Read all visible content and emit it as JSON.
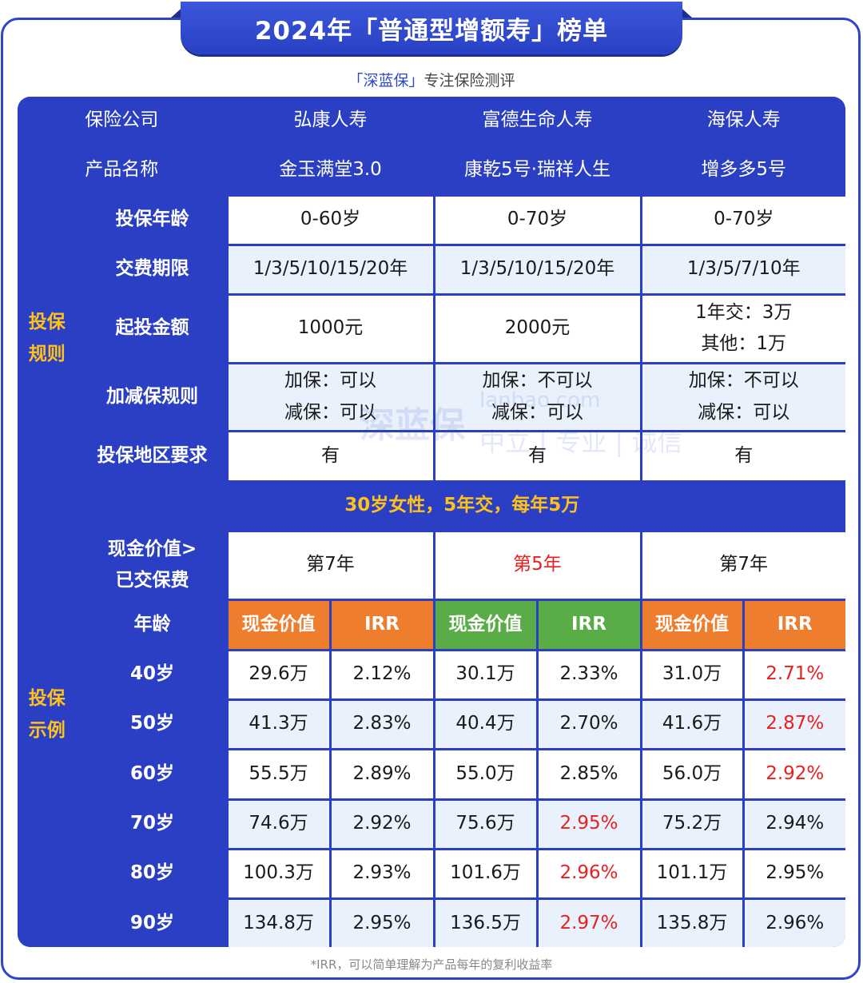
{
  "title": "2024年「普通型增额寿」榜单",
  "subtitle": {
    "brand": "「深蓝保」",
    "rest": "专注保险测评"
  },
  "watermark": {
    "main": "深蓝保",
    "url": "lanbao.com",
    "tag": "中立 | 专业 | 诚信"
  },
  "header": {
    "company_label": "保险公司",
    "product_label": "产品名称"
  },
  "products": [
    {
      "company": "弘康人寿",
      "name": "金玉满堂3.0",
      "age": "0-60岁",
      "pay_period": "1/3/5/10/15/20年",
      "min_amount_1": "1000元",
      "min_amount_2": "",
      "adjust_1": "加保：可以",
      "adjust_2": "减保：可以",
      "region": "有",
      "year_label": "第7年"
    },
    {
      "company": "富德生命人寿",
      "name": "康乾5号·瑞祥人生",
      "age": "0-70岁",
      "pay_period": "1/3/5/10/15/20年",
      "min_amount_1": "2000元",
      "min_amount_2": "",
      "adjust_1": "加保：不可以",
      "adjust_2": "减保：可以",
      "region": "有",
      "year_label": "第5年"
    },
    {
      "company": "海保人寿",
      "name": "增多多5号",
      "age": "0-70岁",
      "pay_period": "1/3/5/7/10年",
      "min_amount_1": "1年交：3万",
      "min_amount_2": "其他：1万",
      "adjust_1": "加保：不可以",
      "adjust_2": "减保：可以",
      "region": "有",
      "year_label": "第7年"
    }
  ],
  "rules": {
    "section_label_1": "投保",
    "section_label_2": "规则",
    "age_label": "投保年龄",
    "pay_label": "交费期限",
    "min_label": "起投金额",
    "adjust_label": "加减保规则",
    "region_label": "投保地区要求"
  },
  "example": {
    "section_label_1": "投保",
    "section_label_2": "示例",
    "scenario": "30岁女性，5年交，每年5万",
    "cv_label_1": "现金价值>",
    "cv_label_2": "已交保费",
    "age_col_label": "年龄",
    "cash_value_label": "现金价值",
    "irr_label": "IRR",
    "rows": [
      {
        "age": "40岁",
        "v": [
          "29.6万",
          "2.12%",
          "30.1万",
          "2.33%",
          "31.0万",
          "2.71%"
        ]
      },
      {
        "age": "50岁",
        "v": [
          "41.3万",
          "2.83%",
          "40.4万",
          "2.70%",
          "41.6万",
          "2.87%"
        ]
      },
      {
        "age": "60岁",
        "v": [
          "55.5万",
          "2.89%",
          "55.0万",
          "2.85%",
          "56.0万",
          "2.92%"
        ]
      },
      {
        "age": "70岁",
        "v": [
          "74.6万",
          "2.92%",
          "75.6万",
          "2.95%",
          "75.2万",
          "2.94%"
        ]
      },
      {
        "age": "80岁",
        "v": [
          "100.3万",
          "2.93%",
          "101.6万",
          "2.96%",
          "101.1万",
          "2.95%"
        ]
      },
      {
        "age": "90岁",
        "v": [
          "134.8万",
          "2.95%",
          "136.5万",
          "2.97%",
          "135.8万",
          "2.96%"
        ]
      }
    ]
  },
  "highlights": {
    "year_red_col": 1,
    "red_cells": [
      [
        0,
        5
      ],
      [
        1,
        5
      ],
      [
        2,
        5
      ],
      [
        3,
        3
      ],
      [
        4,
        3
      ],
      [
        5,
        3
      ]
    ]
  },
  "colors": {
    "primary_blue": "#2b3fc4",
    "gold": "#ffc21a",
    "orange": "#ef7d2e",
    "green": "#5aad46",
    "red": "#e8201f",
    "light_row": "#e8f1fc"
  },
  "footnote": "*IRR，可以简单理解为产品每年的复利收益率"
}
